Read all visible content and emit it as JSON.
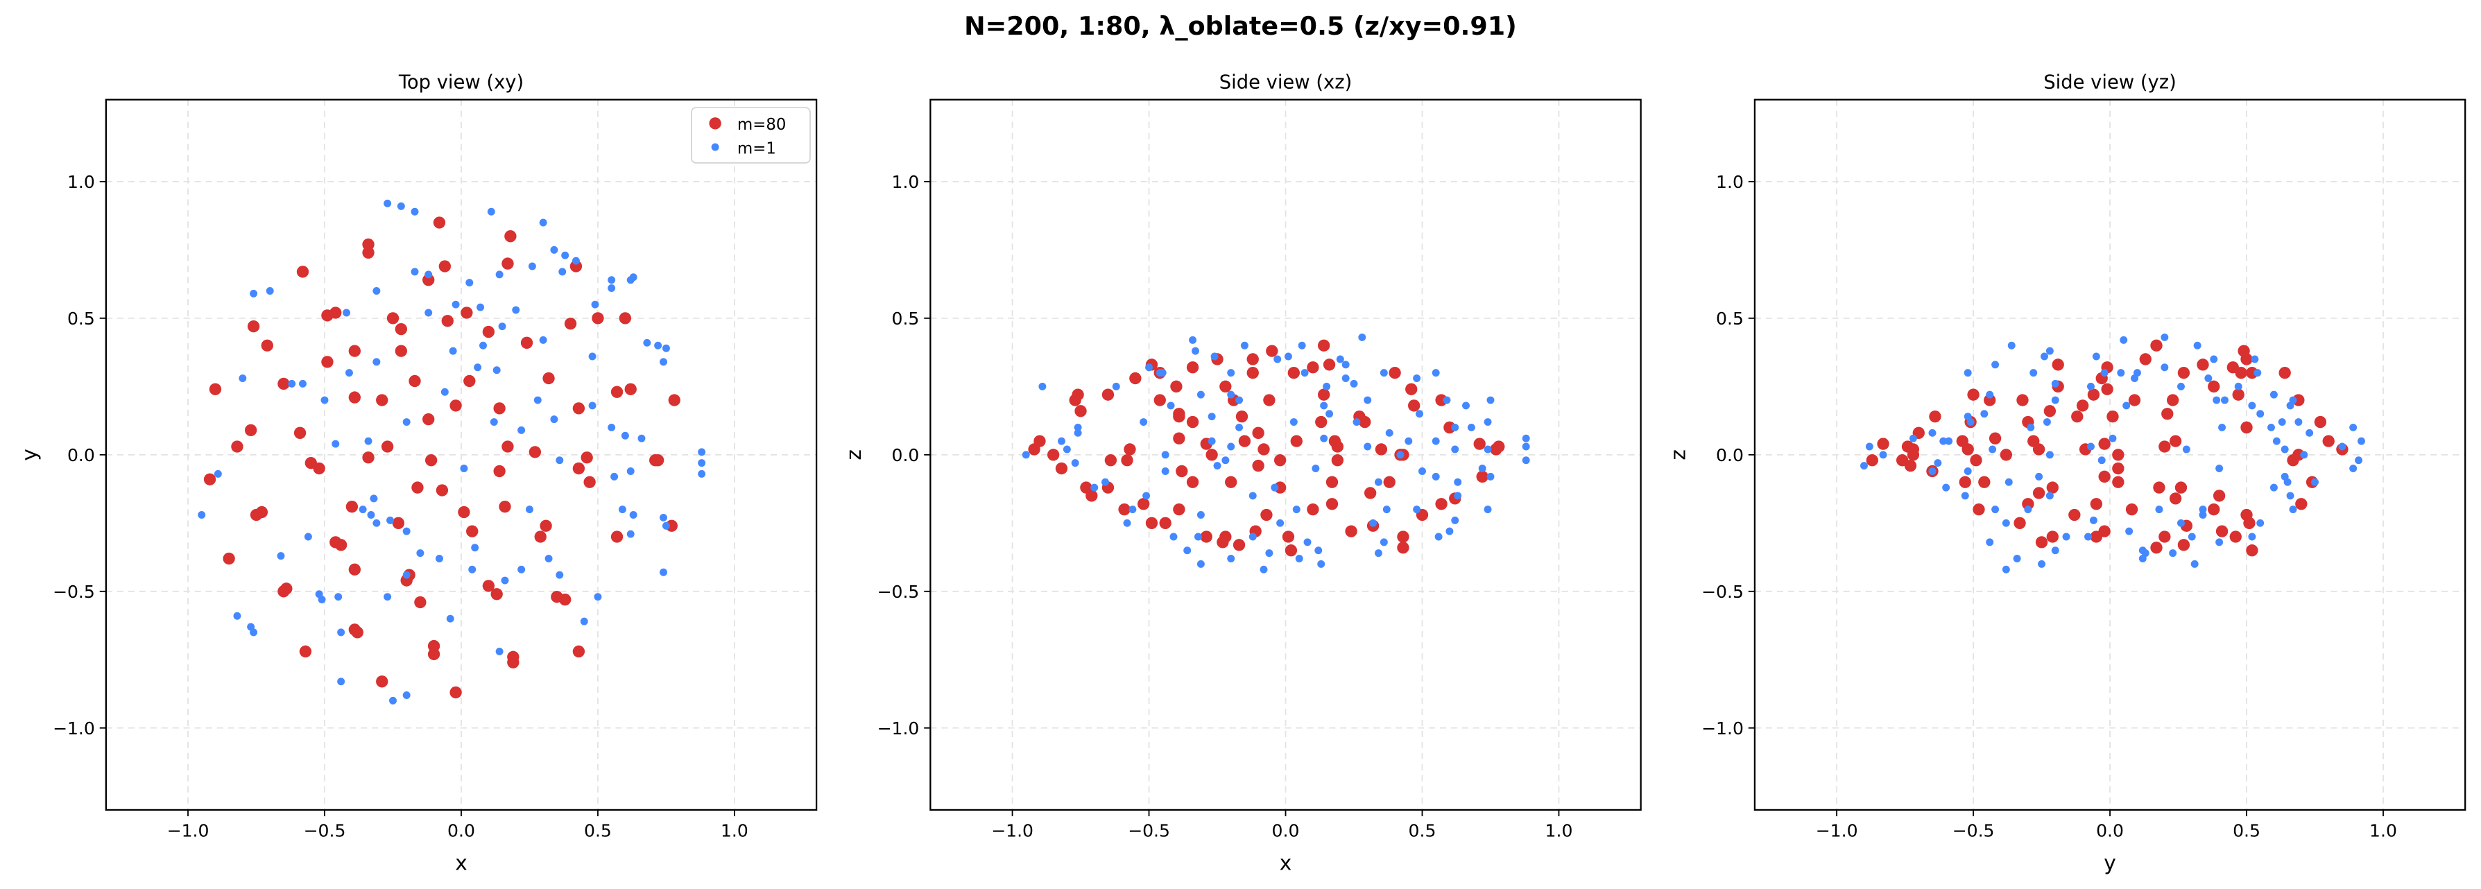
{
  "chart_data": {
    "type": "scatter",
    "title": "N=200, 1:80, λ_oblate=0.5  (z/xy=0.91)",
    "colors": {
      "m80": "#d93030",
      "m1": "#4488ff"
    },
    "legend": {
      "placement": "top-right",
      "entries": [
        "m=80",
        "m=1"
      ]
    },
    "grid": true,
    "xlim": [
      -1.3,
      1.3
    ],
    "ylim": [
      -1.3,
      1.3
    ],
    "ticks": [
      -1.0,
      -0.5,
      0.0,
      0.5,
      1.0
    ],
    "tick_labels": [
      "−1.0",
      "−0.5",
      "0.0",
      "0.5",
      "1.0"
    ],
    "panels": [
      {
        "title": "Top view (xy)",
        "xlabel": "x",
        "ylabel": "y",
        "axes": [
          0,
          1
        ]
      },
      {
        "title": "Side view (xz)",
        "xlabel": "x",
        "ylabel": "z",
        "axes": [
          0,
          2
        ]
      },
      {
        "title": "Side view (yz)",
        "xlabel": "y",
        "ylabel": "z",
        "axes": [
          1,
          2
        ]
      }
    ],
    "series": [
      {
        "name": "m=80",
        "points_xyz": [
          [
            0.18,
            0.8,
            0.05
          ],
          [
            -0.58,
            0.67,
            -0.02
          ],
          [
            -0.34,
            0.77,
            0.12
          ],
          [
            -0.34,
            0.74,
            -0.1
          ],
          [
            -0.06,
            0.69,
            0.2
          ],
          [
            0.17,
            0.7,
            -0.18
          ],
          [
            0.42,
            0.69,
            0.0
          ],
          [
            -0.12,
            0.64,
            0.3
          ],
          [
            -0.08,
            0.85,
            0.02
          ],
          [
            -0.76,
            0.47,
            0.22
          ],
          [
            -0.71,
            0.4,
            -0.15
          ],
          [
            -0.46,
            0.52,
            0.3
          ],
          [
            -0.49,
            0.51,
            -0.25
          ],
          [
            -0.25,
            0.5,
            0.35
          ],
          [
            -0.22,
            0.46,
            -0.3
          ],
          [
            -0.05,
            0.49,
            0.38
          ],
          [
            0.02,
            0.52,
            -0.35
          ],
          [
            0.4,
            0.48,
            0.3
          ],
          [
            0.5,
            0.5,
            -0.22
          ],
          [
            0.1,
            0.45,
            0.32
          ],
          [
            0.24,
            0.41,
            -0.28
          ],
          [
            0.6,
            0.5,
            0.1
          ],
          [
            -0.9,
            0.24,
            0.05
          ],
          [
            -0.65,
            0.26,
            -0.12
          ],
          [
            -0.49,
            0.34,
            0.33
          ],
          [
            -0.39,
            0.38,
            -0.2
          ],
          [
            -0.22,
            0.38,
            0.25
          ],
          [
            -0.17,
            0.27,
            -0.33
          ],
          [
            0.03,
            0.27,
            0.3
          ],
          [
            0.32,
            0.28,
            -0.26
          ],
          [
            -0.77,
            0.09,
            0.2
          ],
          [
            -0.59,
            0.08,
            -0.2
          ],
          [
            -0.39,
            0.21,
            0.15
          ],
          [
            -0.29,
            0.2,
            -0.3
          ],
          [
            -0.12,
            0.13,
            0.35
          ],
          [
            -0.02,
            0.18,
            -0.12
          ],
          [
            0.14,
            0.17,
            0.4
          ],
          [
            0.43,
            0.17,
            -0.34
          ],
          [
            0.57,
            0.23,
            0.2
          ],
          [
            0.62,
            0.24,
            -0.16
          ],
          [
            0.78,
            0.2,
            0.03
          ],
          [
            -0.92,
            -0.09,
            0.02
          ],
          [
            -0.82,
            0.03,
            -0.05
          ],
          [
            -0.55,
            -0.03,
            0.28
          ],
          [
            -0.52,
            -0.05,
            -0.18
          ],
          [
            -0.34,
            -0.01,
            0.32
          ],
          [
            -0.27,
            0.03,
            0.0
          ],
          [
            -0.11,
            -0.02,
            -0.28
          ],
          [
            0.14,
            -0.06,
            0.22
          ],
          [
            0.17,
            0.03,
            -0.1
          ],
          [
            0.27,
            0.01,
            0.14
          ],
          [
            0.43,
            -0.05,
            -0.3
          ],
          [
            0.46,
            -0.01,
            0.24
          ],
          [
            0.71,
            -0.02,
            0.04
          ],
          [
            0.72,
            -0.02,
            -0.08
          ],
          [
            0.47,
            -0.1,
            0.18
          ],
          [
            0.77,
            -0.26,
            0.02
          ],
          [
            -0.75,
            -0.22,
            0.16
          ],
          [
            -0.73,
            -0.21,
            -0.12
          ],
          [
            -0.4,
            -0.19,
            0.25
          ],
          [
            -0.23,
            -0.25,
            -0.32
          ],
          [
            -0.16,
            -0.12,
            0.14
          ],
          [
            -0.07,
            -0.13,
            -0.22
          ],
          [
            0.16,
            -0.19,
            0.33
          ],
          [
            0.31,
            -0.26,
            -0.14
          ],
          [
            0.29,
            -0.3,
            0.12
          ],
          [
            0.01,
            -0.21,
            -0.3
          ],
          [
            0.04,
            -0.28,
            0.05
          ],
          [
            0.57,
            -0.3,
            -0.18
          ],
          [
            -0.85,
            -0.38,
            0.0
          ],
          [
            -0.46,
            -0.32,
            0.2
          ],
          [
            -0.44,
            -0.33,
            -0.25
          ],
          [
            -0.39,
            -0.42,
            0.06
          ],
          [
            -0.65,
            -0.5,
            0.22
          ],
          [
            -0.64,
            -0.49,
            -0.02
          ],
          [
            -0.19,
            -0.44,
            0.2
          ],
          [
            -0.2,
            -0.46,
            -0.1
          ],
          [
            -0.15,
            -0.54,
            0.05
          ],
          [
            0.1,
            -0.48,
            -0.2
          ],
          [
            0.13,
            -0.51,
            0.12
          ],
          [
            0.35,
            -0.52,
            0.02
          ],
          [
            0.38,
            -0.53,
            -0.1
          ],
          [
            -0.39,
            -0.64,
            0.14
          ],
          [
            -0.38,
            -0.65,
            -0.06
          ],
          [
            -0.57,
            -0.72,
            0.02
          ],
          [
            -0.1,
            -0.7,
            0.08
          ],
          [
            -0.1,
            -0.73,
            -0.04
          ],
          [
            0.19,
            -0.74,
            0.03
          ],
          [
            0.19,
            -0.76,
            -0.02
          ],
          [
            0.43,
            -0.72,
            0.0
          ],
          [
            -0.29,
            -0.83,
            0.04
          ],
          [
            -0.02,
            -0.87,
            -0.02
          ]
        ]
      },
      {
        "name": "m=1",
        "points_xyz": [
          [
            -0.27,
            0.92,
            0.05
          ],
          [
            -0.22,
            0.91,
            -0.02
          ],
          [
            -0.17,
            0.89,
            0.1
          ],
          [
            0.11,
            0.89,
            -0.05
          ],
          [
            0.3,
            0.85,
            0.03
          ],
          [
            -0.17,
            0.67,
            0.2
          ],
          [
            -0.12,
            0.66,
            -0.15
          ],
          [
            0.14,
            0.66,
            0.18
          ],
          [
            0.34,
            0.75,
            -0.1
          ],
          [
            0.38,
            0.73,
            0.08
          ],
          [
            0.42,
            0.71,
            0.0
          ],
          [
            0.37,
            0.67,
            -0.2
          ],
          [
            0.26,
            0.69,
            0.12
          ],
          [
            -0.76,
            0.59,
            0.1
          ],
          [
            -0.7,
            0.6,
            -0.12
          ],
          [
            -0.31,
            0.6,
            0.22
          ],
          [
            -0.02,
            0.55,
            -0.25
          ],
          [
            0.07,
            0.54,
            0.3
          ],
          [
            0.55,
            0.61,
            0.05
          ],
          [
            0.55,
            0.64,
            -0.08
          ],
          [
            0.49,
            0.55,
            0.15
          ],
          [
            0.62,
            0.64,
            0.02
          ],
          [
            0.63,
            0.65,
            -0.1
          ],
          [
            0.2,
            0.53,
            0.35
          ],
          [
            -0.12,
            0.52,
            -0.3
          ],
          [
            0.15,
            0.47,
            0.25
          ],
          [
            -0.62,
            0.26,
            0.25
          ],
          [
            -0.41,
            0.3,
            -0.3
          ],
          [
            -0.03,
            0.38,
            0.35
          ],
          [
            0.08,
            0.4,
            -0.32
          ],
          [
            0.68,
            0.41,
            0.1
          ],
          [
            0.72,
            0.4,
            -0.05
          ],
          [
            0.75,
            0.39,
            0.2
          ],
          [
            0.74,
            0.34,
            -0.2
          ],
          [
            0.48,
            0.36,
            0.28
          ],
          [
            -0.8,
            0.28,
            0.02
          ],
          [
            -0.5,
            0.2,
            0.32
          ],
          [
            -0.34,
            0.05,
            0.42
          ],
          [
            -0.2,
            0.12,
            -0.38
          ],
          [
            0.06,
            0.32,
            0.4
          ],
          [
            0.13,
            0.31,
            -0.4
          ],
          [
            0.28,
            0.2,
            0.43
          ],
          [
            0.34,
            0.13,
            -0.36
          ],
          [
            0.55,
            0.1,
            0.3
          ],
          [
            0.6,
            0.07,
            -0.28
          ],
          [
            0.66,
            0.06,
            0.18
          ],
          [
            0.62,
            -0.06,
            -0.24
          ],
          [
            0.88,
            0.01,
            0.06
          ],
          [
            0.88,
            -0.03,
            -0.02
          ],
          [
            0.88,
            -0.07,
            0.03
          ],
          [
            -0.95,
            -0.22,
            0.0
          ],
          [
            -0.89,
            -0.07,
            0.25
          ],
          [
            -0.66,
            -0.37,
            -0.1
          ],
          [
            -0.52,
            -0.51,
            0.12
          ],
          [
            -0.51,
            -0.53,
            -0.15
          ],
          [
            -0.45,
            -0.52,
            0.3
          ],
          [
            -0.36,
            -0.2,
            -0.35
          ],
          [
            -0.33,
            -0.22,
            0.38
          ],
          [
            -0.31,
            -0.25,
            -0.4
          ],
          [
            -0.26,
            -0.24,
            0.36
          ],
          [
            -0.32,
            -0.16,
            -0.3
          ],
          [
            -0.15,
            -0.36,
            0.4
          ],
          [
            -0.08,
            -0.38,
            -0.42
          ],
          [
            -0.2,
            -0.28,
            0.3
          ],
          [
            0.05,
            -0.34,
            -0.38
          ],
          [
            0.22,
            -0.42,
            0.33
          ],
          [
            0.36,
            -0.44,
            -0.32
          ],
          [
            0.59,
            -0.2,
            0.2
          ],
          [
            0.63,
            -0.22,
            -0.15
          ],
          [
            0.62,
            -0.29,
            0.1
          ],
          [
            0.56,
            -0.08,
            -0.3
          ],
          [
            0.74,
            -0.23,
            0.12
          ],
          [
            0.75,
            -0.26,
            -0.08
          ],
          [
            0.74,
            -0.43,
            0.02
          ],
          [
            -0.82,
            -0.59,
            0.05
          ],
          [
            -0.77,
            -0.63,
            -0.03
          ],
          [
            -0.76,
            -0.65,
            0.08
          ],
          [
            -0.44,
            -0.83,
            0.0
          ],
          [
            -0.2,
            -0.88,
            0.03
          ],
          [
            -0.25,
            -0.9,
            -0.04
          ],
          [
            -0.2,
            -0.44,
            0.22
          ],
          [
            0.04,
            -0.42,
            -0.2
          ],
          [
            0.16,
            -0.46,
            0.15
          ],
          [
            0.32,
            -0.38,
            -0.25
          ],
          [
            0.36,
            -0.02,
            0.3
          ],
          [
            0.12,
            0.12,
            -0.35
          ],
          [
            0.01,
            -0.05,
            0.36
          ],
          [
            -0.06,
            0.23,
            -0.36
          ],
          [
            -0.46,
            0.04,
            0.3
          ],
          [
            -0.58,
            0.26,
            -0.25
          ],
          [
            -0.42,
            0.52,
            0.18
          ],
          [
            0.22,
            0.09,
            0.28
          ],
          [
            0.48,
            0.18,
            -0.2
          ],
          [
            0.03,
            0.63,
            0.12
          ],
          [
            -0.31,
            0.34,
            -0.22
          ],
          [
            0.25,
            -0.2,
            0.26
          ],
          [
            -0.56,
            -0.3,
            -0.2
          ],
          [
            -0.27,
            -0.52,
            0.14
          ],
          [
            0.5,
            -0.52,
            -0.06
          ],
          [
            0.45,
            -0.61,
            0.05
          ],
          [
            -0.04,
            -0.6,
            -0.12
          ],
          [
            0.14,
            -0.72,
            0.06
          ],
          [
            -0.44,
            -0.65,
            -0.06
          ],
          [
            0.3,
            0.42,
            0.2
          ]
        ]
      }
    ]
  }
}
